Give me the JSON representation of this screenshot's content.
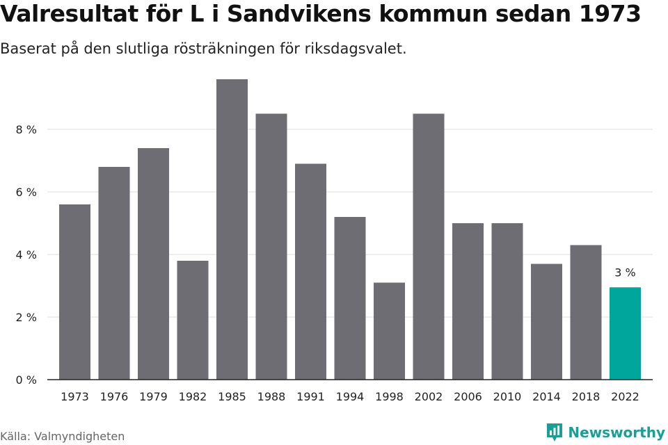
{
  "header": {
    "title": "Valresultat för L i Sandvikens kommun sedan 1973",
    "subtitle": "Baserat på den slutliga rösträkningen för riksdagsvalet."
  },
  "footer": {
    "source": "Källa: Valmyndigheten",
    "brand": "Newsworthy",
    "brand_icon": "bar-chart-logo-icon",
    "brand_color": "#1a9e96"
  },
  "chart_data": {
    "type": "bar",
    "categories": [
      "1973",
      "1976",
      "1979",
      "1982",
      "1985",
      "1988",
      "1991",
      "1994",
      "1998",
      "2002",
      "2006",
      "2010",
      "2014",
      "2018",
      "2022"
    ],
    "values": [
      5.6,
      6.8,
      7.4,
      3.8,
      9.6,
      8.5,
      6.9,
      5.2,
      3.1,
      8.5,
      5.0,
      5.0,
      3.7,
      4.3,
      2.95
    ],
    "ylim": [
      0,
      10
    ],
    "yticks": [
      0,
      2,
      4,
      6,
      8
    ],
    "ytick_labels": [
      "0 %",
      "2 %",
      "4 %",
      "6 %",
      "8 %"
    ],
    "grid": true,
    "bar_color": "#6e6d73",
    "highlight_color": "#00a69c",
    "highlight_index": 14,
    "annotations": [
      {
        "category": "2022",
        "text": "3 %"
      }
    ]
  }
}
